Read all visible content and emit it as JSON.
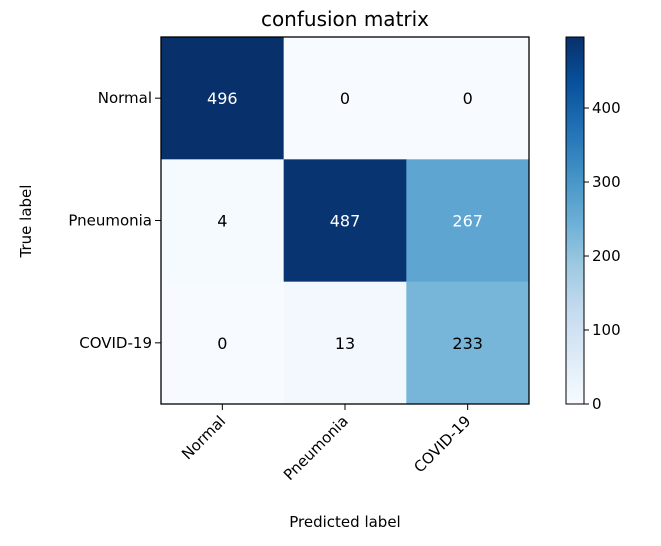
{
  "chart_data": {
    "type": "heatmap",
    "title": "confusion matrix",
    "xlabel": "Predicted label",
    "ylabel": "True label",
    "x_categories": [
      "Normal",
      "Pneumonia",
      "COVID-19"
    ],
    "y_categories": [
      "Normal",
      "Pneumonia",
      "COVID-19"
    ],
    "values": [
      [
        496,
        0,
        0
      ],
      [
        4,
        487,
        267
      ],
      [
        0,
        13,
        233
      ]
    ],
    "colormap": "Blues",
    "color_range": [
      0,
      496
    ],
    "colorbar_ticks": [
      0,
      100,
      200,
      300,
      400
    ],
    "x_tick_rotation_deg": 45,
    "grid": false
  }
}
